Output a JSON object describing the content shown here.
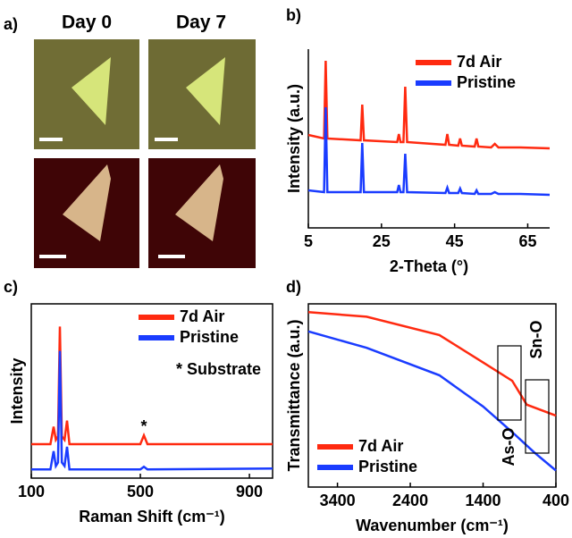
{
  "image_panel": {
    "label": "a)",
    "columns": [
      "Day 0",
      "Day 7"
    ]
  },
  "chart_data": [
    {
      "type": "line",
      "label": "b)",
      "xlabel": "2-Theta (°)",
      "ylabel": "Intensity (a.u.)",
      "xlim": [
        5,
        71
      ],
      "ylim": [
        0,
        10
      ],
      "xticks": [
        5,
        25,
        45,
        65
      ],
      "legend": "top-right",
      "series": [
        {
          "name": "7d Air",
          "color": "#ff2a10",
          "x": [
            5,
            9.3,
            9.75,
            10.2,
            19.3,
            19.75,
            20.2,
            29.3,
            29.75,
            30.2,
            31,
            31.5,
            32,
            42.5,
            43,
            43.5,
            46,
            46.5,
            47,
            50.5,
            51,
            51.5,
            55,
            56,
            57,
            63,
            71
          ],
          "values": [
            5.2,
            5.0,
            9.35,
            5.0,
            4.9,
            6.9,
            4.9,
            4.8,
            5.25,
            4.8,
            4.8,
            7.9,
            4.8,
            4.65,
            5.25,
            4.65,
            4.6,
            5.0,
            4.6,
            4.55,
            5.0,
            4.55,
            4.5,
            4.7,
            4.5,
            4.5,
            4.45
          ]
        },
        {
          "name": "Pristine",
          "color": "#1a3cff",
          "x": [
            5,
            9.3,
            9.75,
            10.2,
            19.3,
            19.75,
            20.2,
            29.3,
            29.75,
            30.2,
            31,
            31.5,
            32,
            42.5,
            43,
            43.5,
            46,
            46.5,
            47,
            50.5,
            51,
            51.5,
            55,
            56,
            57,
            63,
            71
          ],
          "values": [
            2.1,
            2.0,
            6.75,
            2.0,
            2.0,
            4.75,
            2.0,
            2.0,
            2.4,
            2.0,
            2.0,
            4.15,
            2.0,
            1.95,
            2.25,
            1.95,
            1.95,
            2.2,
            1.95,
            1.9,
            2.1,
            1.9,
            1.9,
            2.0,
            1.9,
            1.9,
            1.85
          ]
        }
      ]
    },
    {
      "type": "line",
      "label": "c)",
      "xlabel": "Raman Shift (cm⁻¹)",
      "ylabel": "Intensity",
      "xlim": [
        100,
        985
      ],
      "ylim": [
        0,
        10
      ],
      "xticks": [
        100,
        500,
        900
      ],
      "legend": "top-right",
      "annotations": [
        "* Substrate",
        "*"
      ],
      "series": [
        {
          "name": "7d Air",
          "color": "#ff2a10",
          "x": [
            100,
            170,
            182,
            190,
            198,
            205,
            212,
            222,
            231,
            240,
            300,
            500,
            513,
            526,
            985
          ],
          "values": [
            1.95,
            1.95,
            2.95,
            2.2,
            2.4,
            8.7,
            2.4,
            2.2,
            3.3,
            1.95,
            1.95,
            1.95,
            2.45,
            1.95,
            1.95
          ]
        },
        {
          "name": "Pristine",
          "color": "#1a3cff",
          "x": [
            100,
            170,
            182,
            190,
            198,
            205,
            212,
            222,
            231,
            240,
            300,
            500,
            513,
            526,
            985
          ],
          "values": [
            0.5,
            0.5,
            1.55,
            0.7,
            0.9,
            7.3,
            0.9,
            0.7,
            1.8,
            0.5,
            0.5,
            0.5,
            0.65,
            0.5,
            0.55
          ]
        }
      ]
    },
    {
      "type": "line",
      "label": "d)",
      "xlabel": "Wavenumber (cm⁻¹)",
      "ylabel": "Transmittance (a.u.)",
      "xlim": [
        3800,
        400
      ],
      "ylim": [
        0,
        10
      ],
      "xticks": [
        3400,
        2400,
        1400,
        400
      ],
      "legend": "bottom-left",
      "annotations": [
        "As-O",
        "Sn-O"
      ],
      "series": [
        {
          "name": "7d Air",
          "color": "#ff2a10",
          "x": [
            3800,
            3000,
            2000,
            1400,
            1000,
            800,
            400
          ],
          "values": [
            9.55,
            9.3,
            8.3,
            6.8,
            5.8,
            4.5,
            3.9
          ]
        },
        {
          "name": "Pristine",
          "color": "#1a3cff",
          "x": [
            3800,
            3000,
            2000,
            1400,
            1000,
            700,
            400
          ],
          "values": [
            8.5,
            7.6,
            6.1,
            4.4,
            3.0,
            1.9,
            0.9
          ]
        }
      ]
    }
  ]
}
